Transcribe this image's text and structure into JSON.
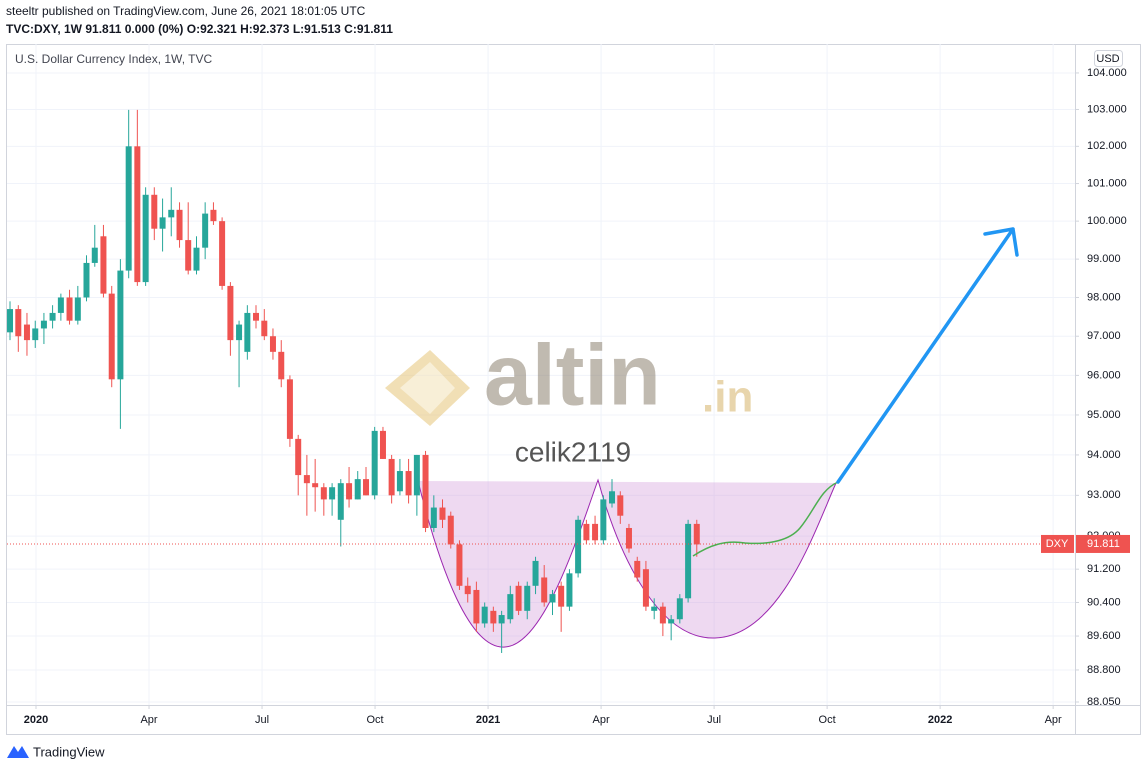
{
  "header": {
    "line1": "steeltr published on TradingView.com, June 26, 2021 18:01:05 UTC",
    "line2": "TVC:DXY, 1W  91.811 0.000 (0%) O:92.321 H:92.373 L:91.513 C:91.811"
  },
  "footer": "TradingView",
  "watermark": {
    "brand": "altin",
    "domain": ".in",
    "author": "celik2119"
  },
  "chart_data": {
    "type": "candlestick",
    "title": "U.S. Dollar Currency Index, 1W, TVC",
    "currency": "USD",
    "x": [
      -0.69,
      -0.47,
      -0.24,
      -0.02,
      0.21,
      0.44,
      0.66,
      0.89,
      1.11,
      1.34,
      1.56,
      1.79,
      2.01,
      2.24,
      2.46,
      2.69,
      2.91,
      3.14,
      3.36,
      3.59,
      3.81,
      4.04,
      4.26,
      4.49,
      4.71,
      4.94,
      5.16,
      5.39,
      5.61,
      5.84,
      6.06,
      6.29,
      6.51,
      6.74,
      6.96,
      7.19,
      7.41,
      7.64,
      7.86,
      8.09,
      8.31,
      8.54,
      8.76,
      8.99,
      9.21,
      9.44,
      9.66,
      9.89,
      10.11,
      10.34,
      10.56,
      10.79,
      11.01,
      11.24,
      11.46,
      11.69,
      11.91,
      12.14,
      12.36,
      12.59,
      12.81,
      13.04,
      13.26,
      13.49,
      13.71,
      13.94,
      14.16,
      14.39,
      14.61,
      14.84,
      15.06,
      15.29,
      15.51,
      15.74,
      15.96,
      16.19,
      16.41,
      16.64,
      16.86,
      17.09,
      17.31,
      17.54
    ],
    "open": [
      97.1,
      97.7,
      97.3,
      96.9,
      97.2,
      97.4,
      97.6,
      98.0,
      97.4,
      98.0,
      98.9,
      99.6,
      98.1,
      95.9,
      98.7,
      102.0,
      98.4,
      100.7,
      99.8,
      100.1,
      100.3,
      99.5,
      98.7,
      99.3,
      100.3,
      100.0,
      98.3,
      96.9,
      96.6,
      97.6,
      97.4,
      97.0,
      96.6,
      95.9,
      94.4,
      93.5,
      93.3,
      93.2,
      92.9,
      92.4,
      93.3,
      92.9,
      93.4,
      93.0,
      94.6,
      93.9,
      93.1,
      93.6,
      93.0,
      94.0,
      92.2,
      92.7,
      92.5,
      91.8,
      90.8,
      90.7,
      89.9,
      90.2,
      89.9,
      90.0,
      90.8,
      90.2,
      90.8,
      91.0,
      90.4,
      90.8,
      90.3,
      91.1,
      92.3,
      92.3,
      91.9,
      92.8,
      93.0,
      92.2,
      91.4,
      91.2,
      90.2,
      90.3,
      89.9,
      90.0,
      90.5,
      92.3
    ],
    "high": [
      97.9,
      97.8,
      97.6,
      97.4,
      97.6,
      97.8,
      98.1,
      98.2,
      98.3,
      99.1,
      99.9,
      99.9,
      98.3,
      99.0,
      102.99,
      102.99,
      100.9,
      100.9,
      100.6,
      100.9,
      100.5,
      100.5,
      99.6,
      100.5,
      100.5,
      100.1,
      98.4,
      97.4,
      97.8,
      97.8,
      97.7,
      97.2,
      96.9,
      96.0,
      94.5,
      94.0,
      93.9,
      93.3,
      93.3,
      93.4,
      93.7,
      93.6,
      93.7,
      94.7,
      94.7,
      94.0,
      93.9,
      93.9,
      94.0,
      94.1,
      93.0,
      92.9,
      92.6,
      91.9,
      91.0,
      90.9,
      90.4,
      90.3,
      90.2,
      90.8,
      90.9,
      90.9,
      91.5,
      91.3,
      90.7,
      90.9,
      91.2,
      92.5,
      92.4,
      92.5,
      93.0,
      93.4,
      93.1,
      92.3,
      91.5,
      91.4,
      90.5,
      90.4,
      90.1,
      90.6,
      92.4,
      92.4
    ],
    "low": [
      96.9,
      96.6,
      96.5,
      96.7,
      96.8,
      97.2,
      97.4,
      97.3,
      97.3,
      97.9,
      98.8,
      98.0,
      95.7,
      94.65,
      98.5,
      98.3,
      98.3,
      99.5,
      99.2,
      99.6,
      99.3,
      98.6,
      98.6,
      99.0,
      99.9,
      98.2,
      96.5,
      95.7,
      96.4,
      97.2,
      96.9,
      96.4,
      95.7,
      94.2,
      93.0,
      92.5,
      92.6,
      92.5,
      92.5,
      91.75,
      92.7,
      92.9,
      93.0,
      92.9,
      93.9,
      92.8,
      93.0,
      92.8,
      92.5,
      92.1,
      92.1,
      92.2,
      91.7,
      90.7,
      90.4,
      89.7,
      89.8,
      89.7,
      89.2,
      89.9,
      90.1,
      90.0,
      90.6,
      90.3,
      90.1,
      89.7,
      90.2,
      91.0,
      91.8,
      91.8,
      91.8,
      92.7,
      92.3,
      91.6,
      90.9,
      90.2,
      90.0,
      89.6,
      89.5,
      89.9,
      90.4,
      91.5
    ],
    "close": [
      97.7,
      97.0,
      96.9,
      97.2,
      97.4,
      97.6,
      98.0,
      97.4,
      98.0,
      98.9,
      99.3,
      98.1,
      95.9,
      98.7,
      102.0,
      98.4,
      100.7,
      99.8,
      100.1,
      100.3,
      99.5,
      98.7,
      99.3,
      100.2,
      100.0,
      98.3,
      96.9,
      97.3,
      97.6,
      97.4,
      97.0,
      96.6,
      95.9,
      94.4,
      93.5,
      93.3,
      93.2,
      92.9,
      93.2,
      93.3,
      92.9,
      93.4,
      93.0,
      94.6,
      93.9,
      93.0,
      93.6,
      93.0,
      94.0,
      92.2,
      92.7,
      92.4,
      91.8,
      90.8,
      90.6,
      89.9,
      90.3,
      89.9,
      90.1,
      90.6,
      90.2,
      90.8,
      91.4,
      90.4,
      90.6,
      90.3,
      91.1,
      92.4,
      91.9,
      91.9,
      92.9,
      93.1,
      92.5,
      91.7,
      91.0,
      90.3,
      90.3,
      89.9,
      90.0,
      90.5,
      92.3,
      91.8
    ],
    "up_color": "#26a69a",
    "down_color": "#ef5350",
    "ylim": [
      87.98,
      104.8
    ],
    "log_scale": true,
    "yticks": [
      {
        "value": 104,
        "label": "104.000"
      },
      {
        "value": 103,
        "label": "103.000"
      },
      {
        "value": 102,
        "label": "102.000"
      },
      {
        "value": 101,
        "label": "101.000"
      },
      {
        "value": 100,
        "label": "100.000"
      },
      {
        "value": 99,
        "label": "99.000"
      },
      {
        "value": 98,
        "label": "98.000"
      },
      {
        "value": 97,
        "label": "97.000"
      },
      {
        "value": 96,
        "label": "96.000"
      },
      {
        "value": 95,
        "label": "95.000"
      },
      {
        "value": 94,
        "label": "94.000"
      },
      {
        "value": 93,
        "label": "93.000"
      },
      {
        "value": 92,
        "label": "92.000"
      },
      {
        "value": 91.2,
        "label": "91.200"
      },
      {
        "value": 90.4,
        "label": "90.400"
      },
      {
        "value": 89.6,
        "label": "89.600"
      },
      {
        "value": 88.8,
        "label": "88.800"
      },
      {
        "value": 88.05,
        "label": "88.050"
      }
    ],
    "xlim": [
      -0.77,
      27.58
    ],
    "xticks": [
      {
        "value": 0,
        "label": "2020"
      },
      {
        "value": 3,
        "label": "Apr"
      },
      {
        "value": 6,
        "label": "Jul"
      },
      {
        "value": 9,
        "label": "Oct"
      },
      {
        "value": 12,
        "label": "2021"
      },
      {
        "value": 15,
        "label": "Apr"
      },
      {
        "value": 18,
        "label": "Jul"
      },
      {
        "value": 21,
        "label": "Oct"
      },
      {
        "value": 24,
        "label": "2022"
      },
      {
        "value": 27,
        "label": "Apr"
      }
    ],
    "grid": true,
    "last_price": {
      "name": "DXY",
      "value": 91.811
    }
  }
}
